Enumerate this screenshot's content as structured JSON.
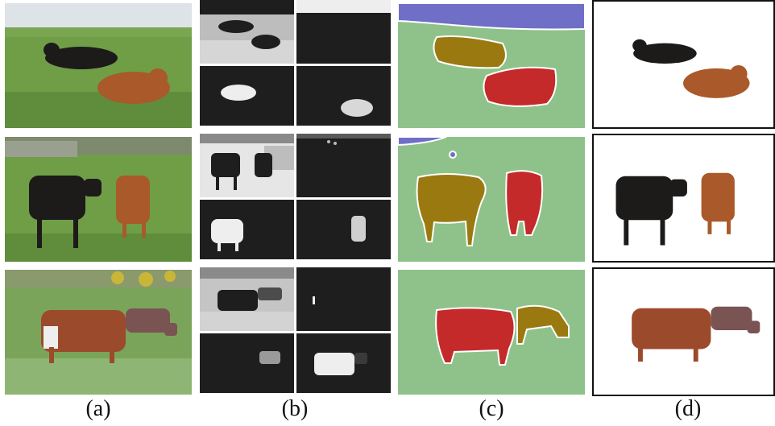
{
  "captions": {
    "a": "(a)",
    "b": "(b)",
    "c": "(c)",
    "d": "(d)"
  },
  "colors": {
    "grass": "#6f9e47",
    "grass_dark": "#557f36",
    "sky": "#dde3e6",
    "cow_black": "#1d1a1a",
    "cow_brown": "#a9592a",
    "cow_red_brown": "#9c4a2c",
    "overlay_gold": "#9a7a10",
    "overlay_red": "#c52a2a",
    "overlay_green": "#8fc28a",
    "overlay_blue": "#6f6fc8",
    "mask_dark": "#1e1e1e",
    "mask_light": "#eeeeee"
  },
  "columns": [
    {
      "key": "a",
      "panel": "input-image"
    },
    {
      "key": "b",
      "panel": "soft-masks"
    },
    {
      "key": "c",
      "panel": "segmentation-overlay"
    },
    {
      "key": "d",
      "panel": "extracted-foreground"
    }
  ]
}
